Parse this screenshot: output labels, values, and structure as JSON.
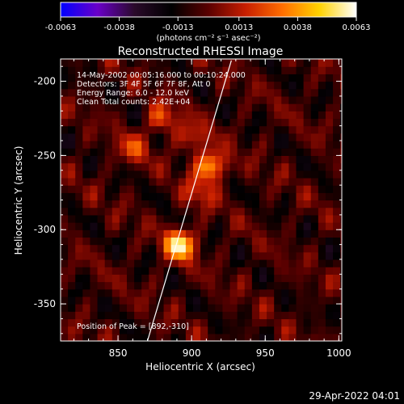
{
  "chart_data": {
    "type": "heatmap",
    "title": "Reconstructed RHESSI Image",
    "xlabel": "Heliocentric X (arcsec)",
    "ylabel": "Heliocentric Y (arcsec)",
    "xlim": [
      811,
      1002
    ],
    "ylim": [
      -375,
      -185
    ],
    "x_ticks": [
      850,
      900,
      950,
      1000
    ],
    "x_tick_labels": [
      "850",
      "900",
      "950",
      "1000"
    ],
    "y_ticks": [
      -200,
      -250,
      -300,
      -350
    ],
    "y_tick_labels": [
      "-200",
      "-250",
      "-300",
      "-350"
    ],
    "colorbar": {
      "range": [
        -0.0063,
        0.0063
      ],
      "ticks": [
        -0.0063,
        -0.0038,
        -0.0013,
        0.0013,
        0.0038,
        0.0063
      ],
      "tick_labels": [
        "-0.0063",
        "-0.0038",
        "-0.0013",
        "0.0013",
        "0.0038",
        "0.0063"
      ],
      "unit_label": "(photons cm⁻² s⁻¹ asec⁻²)",
      "colormap": [
        "#0000ff",
        "#6a00c8",
        "#2a0a2a",
        "#000000",
        "#5a0000",
        "#c81e00",
        "#ff6e00",
        "#ffd200",
        "#ffffff"
      ]
    },
    "info_lines": [
      "14-May-2002 00:05:16.000 to 00:10:24.000",
      "Detectors: 3F 4F 5F 6F 7F 8F, Att 0",
      "Energy Range: 6.0 - 12.0 keV",
      "Clean     Total counts: 2.42E+04"
    ],
    "peak_label": "Position of Peak = [892,-310]",
    "peak": {
      "x": 892,
      "y": -310
    },
    "sources": [
      {
        "x": 892,
        "y": -310,
        "value": 0.0063
      },
      {
        "x": 913,
        "y": -257,
        "value": 0.0052
      },
      {
        "x": 880,
        "y": -225,
        "value": 0.003
      },
      {
        "x": 860,
        "y": -245,
        "value": 0.0025
      },
      {
        "x": 905,
        "y": -275,
        "value": 0.0022
      },
      {
        "x": 900,
        "y": -238,
        "value": 0.0024
      }
    ],
    "limb_line": [
      [
        870,
        -375
      ],
      [
        927,
        -186
      ]
    ],
    "timestamp": "29-Apr-2022 04:01"
  }
}
